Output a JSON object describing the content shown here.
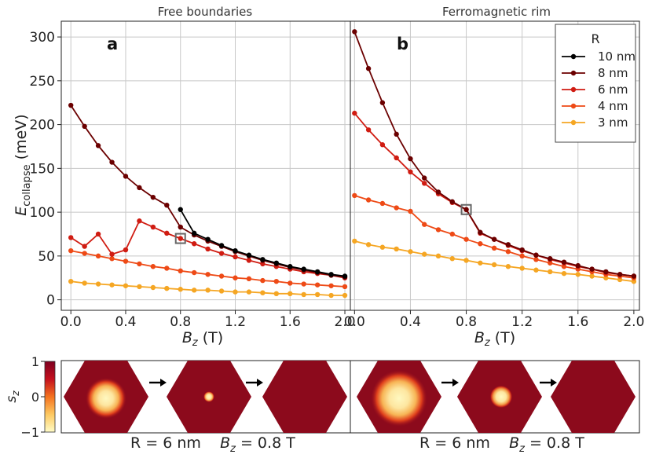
{
  "chart_data": [
    {
      "panel": "a",
      "type": "line",
      "title": "Free boundaries",
      "xlabel": "B_z (T)",
      "ylabel": "E_collapse (meV)",
      "xlim": [
        -0.07,
        2.04
      ],
      "ylim": [
        -12,
        318
      ],
      "xticks": [
        "0.0",
        "0.4",
        "0.8",
        "1.2",
        "1.6",
        "2.0"
      ],
      "yticks": [
        "0",
        "50",
        "100",
        "150",
        "200",
        "250",
        "300"
      ],
      "series": [
        {
          "name": "10 nm",
          "color": "#000000",
          "x": [
            0.8,
            0.9,
            1.0,
            1.1,
            1.2,
            1.3,
            1.4,
            1.5,
            1.6,
            1.7,
            1.8,
            1.9,
            2.0
          ],
          "y": [
            103,
            76,
            69,
            62,
            56,
            51,
            46,
            42,
            38,
            35,
            32,
            29,
            27
          ]
        },
        {
          "name": "8 nm",
          "color": "#6b0000",
          "x": [
            0.0,
            0.1,
            0.2,
            0.3,
            0.4,
            0.5,
            0.6,
            0.7,
            0.8,
            0.9,
            1.0,
            1.1,
            1.2,
            1.3,
            1.4,
            1.5,
            1.6,
            1.7,
            1.8,
            1.9,
            2.0
          ],
          "y": [
            222,
            198,
            176,
            157,
            141,
            128,
            117,
            108,
            83,
            74,
            67,
            61,
            55,
            50,
            45,
            41,
            37,
            34,
            31,
            28,
            26
          ]
        },
        {
          "name": "6 nm",
          "color": "#d01c12",
          "x": [
            0.0,
            0.1,
            0.2,
            0.3,
            0.4,
            0.5,
            0.6,
            0.7,
            0.8,
            0.9,
            1.0,
            1.1,
            1.2,
            1.3,
            1.4,
            1.5,
            1.6,
            1.7,
            1.8,
            1.9,
            2.0
          ],
          "y": [
            71,
            61,
            75,
            52,
            57,
            90,
            83,
            76,
            70,
            64,
            58,
            53,
            49,
            45,
            41,
            38,
            35,
            32,
            30,
            28,
            25
          ]
        },
        {
          "name": "4 nm",
          "color": "#ee4a16",
          "x": [
            0.0,
            0.1,
            0.2,
            0.3,
            0.4,
            0.5,
            0.6,
            0.7,
            0.8,
            0.9,
            1.0,
            1.1,
            1.2,
            1.3,
            1.4,
            1.5,
            1.6,
            1.7,
            1.8,
            1.9,
            2.0
          ],
          "y": [
            56,
            53,
            50,
            47,
            44,
            41,
            38,
            36,
            33,
            31,
            29,
            27,
            25,
            24,
            22,
            21,
            19,
            18,
            17,
            16,
            15
          ]
        },
        {
          "name": "3 nm",
          "color": "#f5a623",
          "x": [
            0.0,
            0.1,
            0.2,
            0.3,
            0.4,
            0.5,
            0.6,
            0.7,
            0.8,
            0.9,
            1.0,
            1.1,
            1.2,
            1.3,
            1.4,
            1.5,
            1.6,
            1.7,
            1.8,
            1.9,
            2.0
          ],
          "y": [
            21,
            19,
            18,
            17,
            16,
            15,
            14,
            13,
            12,
            11,
            11,
            10,
            9,
            9,
            8,
            7,
            7,
            6,
            6,
            5,
            5
          ]
        }
      ],
      "highlight": {
        "x": 0.8,
        "y": 70
      }
    },
    {
      "panel": "b",
      "type": "line",
      "title": "Ferromagnetic rim",
      "xlabel": "B_z (T)",
      "xlim": [
        -0.03,
        2.04
      ],
      "ylim": [
        -12,
        318
      ],
      "xticks": [
        "0.0",
        "0.4",
        "0.8",
        "1.2",
        "1.6",
        "2.0"
      ],
      "series": [
        {
          "name": "8 nm",
          "color": "#6b0000",
          "x": [
            0.0,
            0.1,
            0.2,
            0.3,
            0.4,
            0.5,
            0.6,
            0.7,
            0.8,
            0.9,
            1.0,
            1.1,
            1.2,
            1.3,
            1.4,
            1.5,
            1.6,
            1.7,
            1.8,
            1.9,
            2.0
          ],
          "y": [
            306,
            264,
            225,
            189,
            161,
            139,
            123,
            112,
            103,
            77,
            69,
            63,
            57,
            51,
            47,
            43,
            39,
            35,
            32,
            29,
            27
          ]
        },
        {
          "name": "6 nm",
          "color": "#d01c12",
          "x": [
            0.0,
            0.1,
            0.2,
            0.3,
            0.4,
            0.5,
            0.6,
            0.7,
            0.8,
            0.9,
            1.0,
            1.1,
            1.2,
            1.3,
            1.4,
            1.5,
            1.6,
            1.7,
            1.8,
            1.9,
            2.0
          ],
          "y": [
            213,
            194,
            177,
            162,
            146,
            133,
            121,
            111,
            103,
            76,
            69,
            62,
            56,
            51,
            46,
            42,
            38,
            35,
            31,
            29,
            27
          ]
        },
        {
          "name": "4 nm",
          "color": "#ee4a16",
          "x": [
            0.0,
            0.1,
            0.2,
            0.3,
            0.4,
            0.5,
            0.6,
            0.7,
            0.8,
            0.9,
            1.0,
            1.1,
            1.2,
            1.3,
            1.4,
            1.5,
            1.6,
            1.7,
            1.8,
            1.9,
            2.0
          ],
          "y": [
            119,
            114,
            110,
            105,
            101,
            86,
            80,
            75,
            69,
            64,
            59,
            55,
            50,
            46,
            42,
            38,
            35,
            32,
            29,
            27,
            25
          ]
        },
        {
          "name": "3 nm",
          "color": "#f5a623",
          "x": [
            0.0,
            0.1,
            0.2,
            0.3,
            0.4,
            0.5,
            0.6,
            0.7,
            0.8,
            0.9,
            1.0,
            1.1,
            1.2,
            1.3,
            1.4,
            1.5,
            1.6,
            1.7,
            1.8,
            1.9,
            2.0
          ],
          "y": [
            67,
            63,
            60,
            58,
            55,
            52,
            50,
            47,
            45,
            42,
            40,
            38,
            36,
            34,
            32,
            30,
            29,
            27,
            25,
            23,
            21
          ]
        }
      ],
      "highlight": {
        "x": 0.8,
        "y": 103
      }
    }
  ],
  "legend": {
    "title": "R",
    "entries": [
      {
        "label": "10 nm",
        "color": "#000000"
      },
      {
        "label": "8 nm",
        "color": "#6b0000"
      },
      {
        "label": "6 nm",
        "color": "#d01c12"
      },
      {
        "label": "4 nm",
        "color": "#ee4a16"
      },
      {
        "label": "3 nm",
        "color": "#f5a623"
      }
    ]
  },
  "panel_letters": {
    "a": "a",
    "b": "b"
  },
  "colorbar": {
    "label": "s_z",
    "ticks": [
      "1",
      "0",
      "−1"
    ]
  },
  "snapshots": {
    "left": {
      "radii": [
        0.42,
        0.11,
        0.0
      ]
    },
    "right": {
      "radii": [
        0.58,
        0.23,
        0.0
      ]
    }
  },
  "bottom_labels": {
    "left": {
      "r_text": "R = 6 nm",
      "b_sym": "B",
      "b_sub": "z",
      "b_val": " = 0.8 T"
    },
    "right": {
      "r_text": "R = 6 nm",
      "b_sym": "B",
      "b_sub": "z",
      "b_val": " = 0.8 T"
    }
  }
}
